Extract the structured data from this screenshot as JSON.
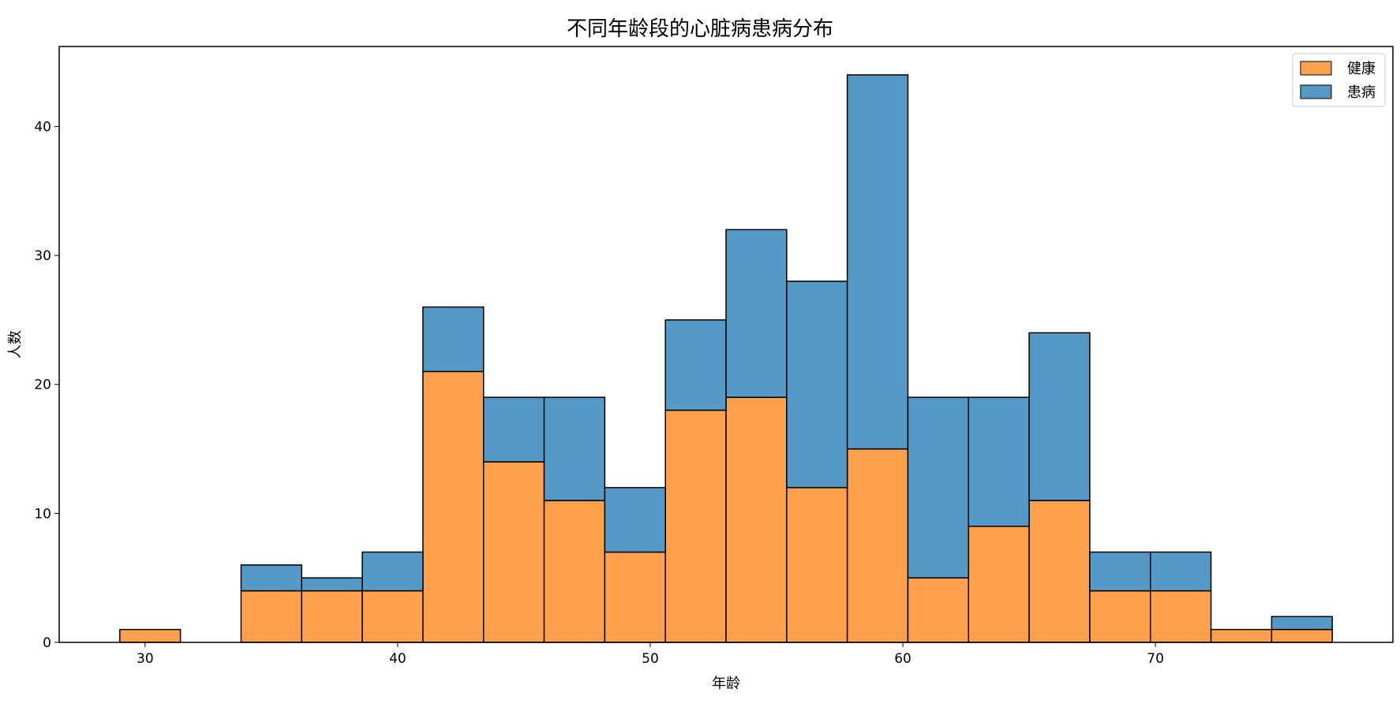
{
  "chart_data": {
    "type": "bar",
    "stacked": true,
    "title": "不同年龄段的心脏病患病分布",
    "xlabel": "年龄",
    "ylabel": "人数",
    "xlim": [
      26.6,
      79.4
    ],
    "ylim": [
      0,
      46.2
    ],
    "xticks": [
      30,
      40,
      50,
      60,
      70
    ],
    "yticks": [
      0,
      10,
      20,
      30,
      40
    ],
    "bin_start": 29,
    "bin_width": 2.4,
    "legend_position": "top-right",
    "series": [
      {
        "name": "健康",
        "color": "#ffa04c",
        "values": [
          1,
          0,
          4,
          4,
          4,
          21,
          14,
          11,
          7,
          18,
          19,
          12,
          15,
          5,
          9,
          11,
          4,
          4,
          1,
          1
        ]
      },
      {
        "name": "患病",
        "color": "#5599c7",
        "values": [
          0,
          0,
          2,
          1,
          3,
          5,
          5,
          8,
          5,
          7,
          13,
          16,
          29,
          14,
          10,
          13,
          3,
          3,
          0,
          1
        ]
      }
    ]
  }
}
